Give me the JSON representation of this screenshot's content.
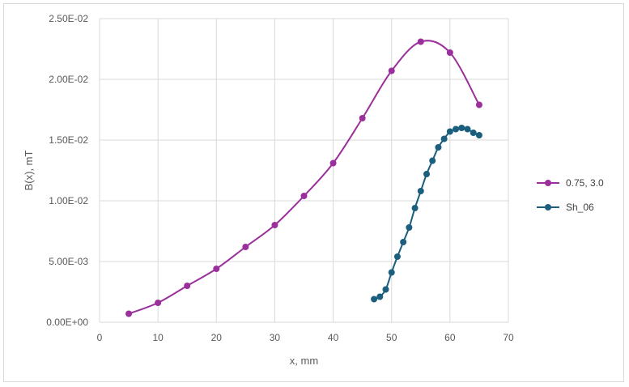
{
  "chart_data": {
    "type": "scatter",
    "xlabel": "x, mm",
    "ylabel": "B(x), mT",
    "xlim": [
      0,
      70
    ],
    "ylim": [
      0,
      0.025
    ],
    "x_ticks": [
      0,
      10,
      20,
      30,
      40,
      50,
      60,
      70
    ],
    "y_ticks": [
      0,
      0.005,
      0.01,
      0.015,
      0.02,
      0.025
    ],
    "y_tick_labels": [
      "0.00E+00",
      "5.00E-03",
      "1.00E-02",
      "1.50E-02",
      "2.00E-02",
      "2.50E-02"
    ],
    "grid": "vertical and horizontal major gridlines",
    "legend_position": "right",
    "line_style": "smoothed lines with circle markers",
    "series": [
      {
        "name": "0.75, 3.0",
        "color": "#9B2F9B",
        "x": [
          5,
          10,
          15,
          20,
          25,
          30,
          35,
          40,
          45,
          50,
          55,
          60,
          65
        ],
        "y": [
          0.0007,
          0.0016,
          0.003,
          0.0044,
          0.0062,
          0.008,
          0.0104,
          0.0131,
          0.0168,
          0.0207,
          0.0231,
          0.0222,
          0.0179
        ]
      },
      {
        "name": "Sh_06",
        "color": "#1B5E7E",
        "x": [
          47,
          48,
          49,
          50,
          51,
          52,
          53,
          54,
          55,
          56,
          57,
          58,
          59,
          60,
          61,
          62,
          63,
          64,
          65
        ],
        "y": [
          0.0019,
          0.0021,
          0.0027,
          0.0041,
          0.0054,
          0.0066,
          0.0078,
          0.0094,
          0.0108,
          0.0122,
          0.0133,
          0.0144,
          0.0151,
          0.0157,
          0.0159,
          0.016,
          0.0159,
          0.0156,
          0.0154
        ]
      }
    ]
  }
}
